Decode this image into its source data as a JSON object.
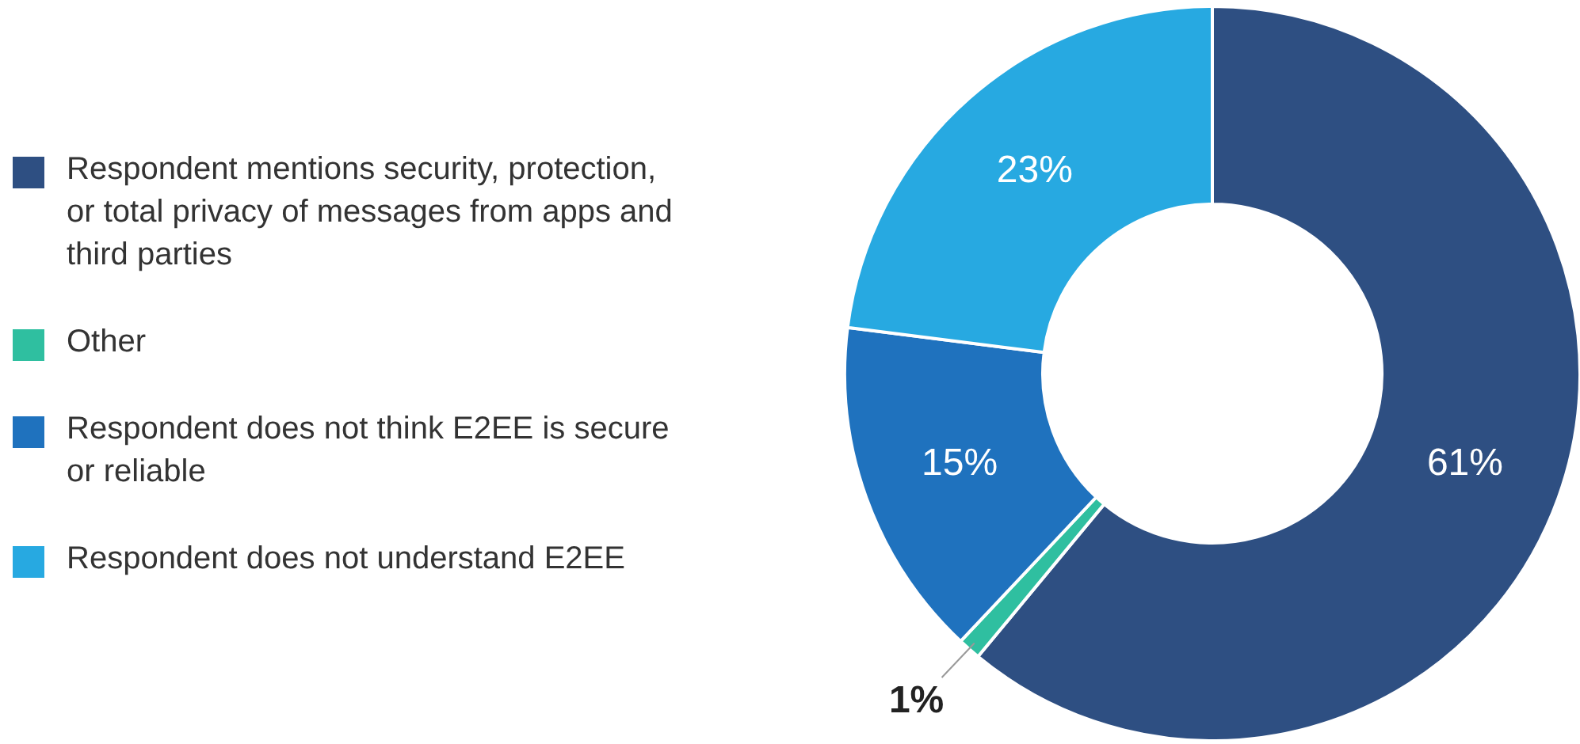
{
  "chart_data": {
    "type": "donut",
    "categories": [
      "Respondent mentions security, protection, or total privacy of messages from apps and third parties",
      "Other",
      "Respondent does not think E2EE is secure or reliable",
      "Respondent does not understand E2EE"
    ],
    "values": [
      61,
      1,
      15,
      23
    ],
    "colors": [
      "#2e4f82",
      "#2fbfa0",
      "#1f72be",
      "#27a9e1"
    ],
    "value_labels": [
      "61%",
      "1%",
      "15%",
      "23%"
    ],
    "legend": "left"
  }
}
